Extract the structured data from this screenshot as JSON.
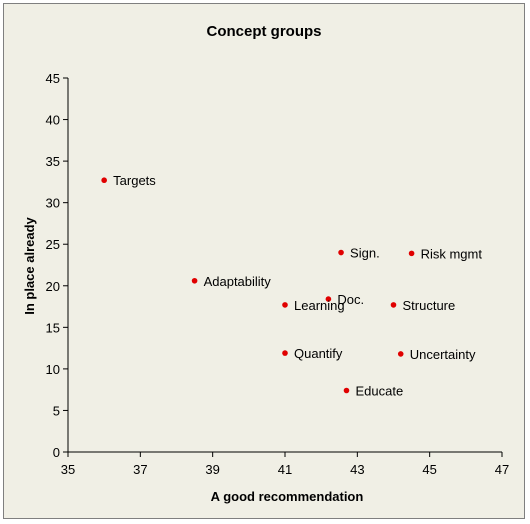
{
  "chart_data": {
    "type": "scatter",
    "title": "Concept groups",
    "xlabel": "A good recommendation",
    "ylabel": "In place already",
    "xlim": [
      35,
      47
    ],
    "ylim": [
      0,
      45
    ],
    "xticks": [
      35,
      37,
      39,
      41,
      43,
      45,
      47
    ],
    "yticks": [
      0,
      5,
      10,
      15,
      20,
      25,
      30,
      35,
      40,
      45
    ],
    "grid": false,
    "legend": "none",
    "marker_color": "#e00000",
    "background_color": "#f0efe5",
    "points": [
      {
        "label": "Targets",
        "x": 36.0,
        "y": 32.7
      },
      {
        "label": "Adaptability",
        "x": 38.5,
        "y": 20.6
      },
      {
        "label": "Sign.",
        "x": 42.55,
        "y": 24.0
      },
      {
        "label": "Risk mgmt",
        "x": 44.5,
        "y": 23.9
      },
      {
        "label": "Doc.",
        "x": 42.2,
        "y": 18.4
      },
      {
        "label": "Learning",
        "x": 41.0,
        "y": 17.7
      },
      {
        "label": "Structure",
        "x": 44.0,
        "y": 17.7
      },
      {
        "label": "Quantify",
        "x": 41.0,
        "y": 11.9
      },
      {
        "label": "Uncertainty",
        "x": 44.2,
        "y": 11.8
      },
      {
        "label": "Educate",
        "x": 42.7,
        "y": 7.4
      }
    ]
  }
}
